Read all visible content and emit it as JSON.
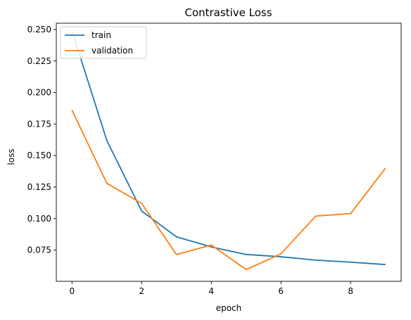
{
  "chart_data": {
    "type": "line",
    "title": "Contrastive Loss",
    "xlabel": "epoch",
    "ylabel": "loss",
    "x": [
      0,
      1,
      2,
      3,
      4,
      5,
      6,
      7,
      8,
      9
    ],
    "xlim": [
      -0.45,
      9.45
    ],
    "ylim": [
      0.0502,
      0.255
    ],
    "xticks": [
      0,
      2,
      4,
      6,
      8
    ],
    "xtick_labels": [
      "0",
      "2",
      "4",
      "6",
      "8"
    ],
    "yticks": [
      0.075,
      0.1,
      0.125,
      0.15,
      0.175,
      0.2,
      0.225,
      0.25
    ],
    "ytick_labels": [
      "0.075",
      "0.100",
      "0.125",
      "0.150",
      "0.175",
      "0.200",
      "0.225",
      "0.250"
    ],
    "grid": false,
    "legend_position": "top-left",
    "series": [
      {
        "name": "train",
        "color": "#1f77b4",
        "values": [
          0.249,
          0.162,
          0.106,
          0.0855,
          0.0775,
          0.0715,
          0.0697,
          0.067,
          0.0654,
          0.0635
        ]
      },
      {
        "name": "validation",
        "color": "#ff7f0e",
        "values": [
          0.186,
          0.128,
          0.112,
          0.0714,
          0.079,
          0.0595,
          0.072,
          0.102,
          0.104,
          0.14
        ]
      }
    ]
  }
}
